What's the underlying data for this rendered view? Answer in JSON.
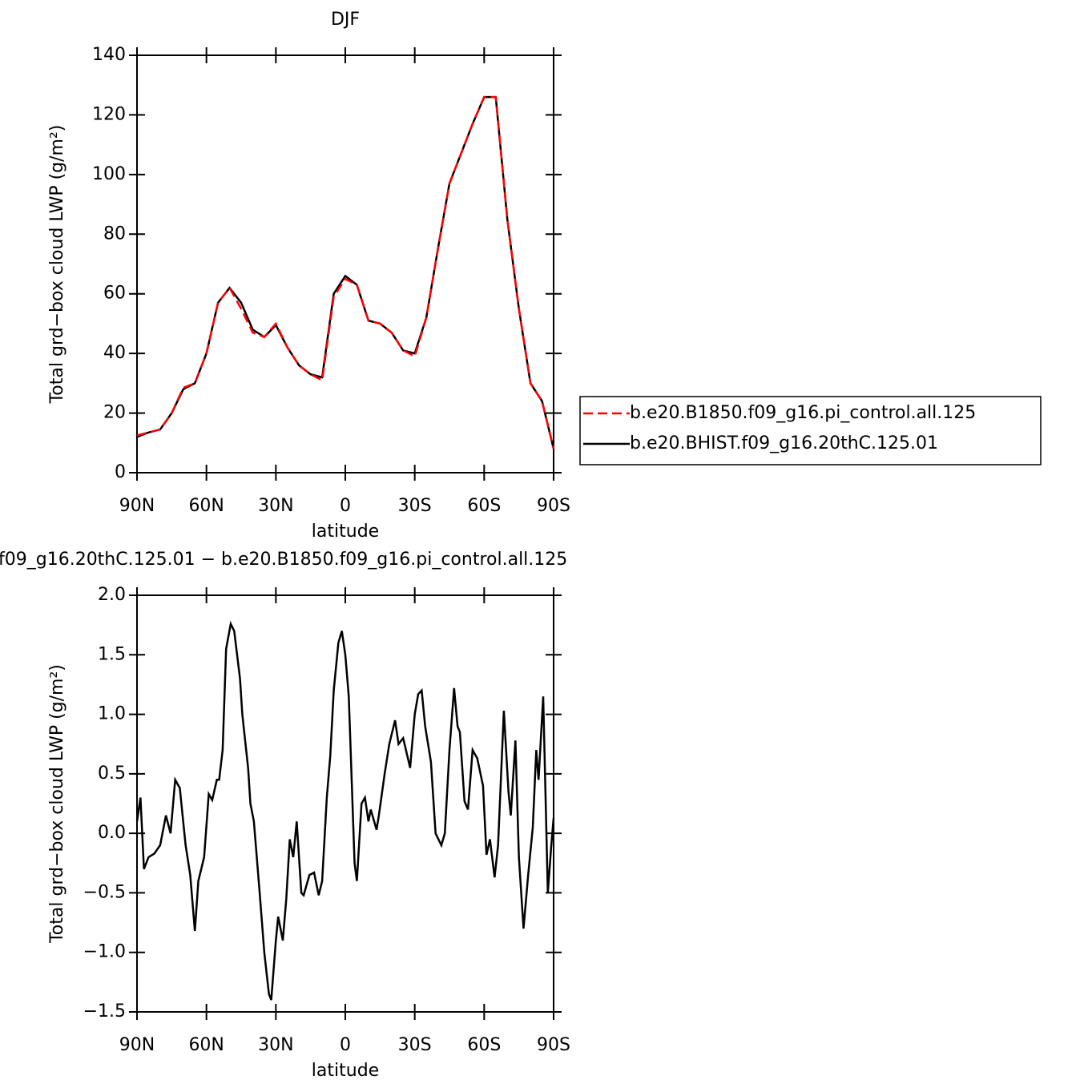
{
  "chart_data": [
    {
      "type": "line",
      "title": "DJF",
      "xlabel": "latitude",
      "ylabel": "Total grd−box cloud LWP (g/m²)",
      "x": [
        90,
        85,
        80,
        75,
        70,
        65,
        60,
        55,
        50,
        45,
        40,
        35,
        30,
        25,
        20,
        15,
        10,
        5,
        0,
        -5,
        -10,
        -15,
        -20,
        -25,
        -30,
        -35,
        -40,
        -45,
        -50,
        -55,
        -60,
        -65,
        -70,
        -75,
        -80,
        -85,
        -90
      ],
      "series": [
        {
          "name": "b.e20.B1850.f09_g16.pi_control.all.125",
          "color": "#ff0000",
          "line_style": "dashed",
          "values": [
            12.5,
            13.5,
            14.5,
            20,
            28.5,
            30,
            40,
            57,
            62,
            55,
            47,
            45.5,
            50,
            42,
            36,
            33,
            31,
            59,
            65,
            63,
            51,
            50,
            47,
            41,
            39,
            52,
            75,
            97,
            107,
            117,
            126,
            126,
            85,
            55,
            30,
            24,
            8
          ]
        },
        {
          "name": "b.e20.BHIST.f09_g16.20thC.125.01",
          "color": "#000000",
          "line_style": "solid",
          "values": [
            12,
            13.5,
            14.5,
            20,
            28,
            30,
            40,
            57,
            62,
            57,
            48,
            45.5,
            49.5,
            42,
            36,
            33,
            32,
            60,
            66,
            63,
            51,
            50,
            47,
            41,
            40,
            52,
            75,
            97,
            107,
            117,
            126,
            126,
            85,
            55,
            30,
            24,
            8
          ]
        }
      ],
      "xlim": [
        90,
        -90
      ],
      "xticks": [
        {
          "value": 90,
          "label": "90N"
        },
        {
          "value": 60,
          "label": "60N"
        },
        {
          "value": 30,
          "label": "30N"
        },
        0,
        {
          "value": -30,
          "label": "30S"
        },
        {
          "value": -60,
          "label": "60S"
        },
        {
          "value": -90,
          "label": "90S"
        }
      ],
      "ylim": [
        0,
        140
      ],
      "yticks": [
        0,
        20,
        40,
        60,
        80,
        100,
        120,
        140
      ],
      "legend": "right"
    },
    {
      "type": "line",
      "title": "f09_g16.20thC.125.01  −  b.e20.B1850.f09_g16.pi_control.all.125",
      "xlabel": "latitude",
      "ylabel": "Total grd−box cloud LWP (g/m²)",
      "x": [
        90,
        88.5,
        87,
        85,
        82.5,
        80,
        77.5,
        75.5,
        73.5,
        71.5,
        69,
        67,
        65,
        63.5,
        61,
        59,
        57.5,
        55.5,
        54.5,
        53,
        51.5,
        49.5,
        48,
        45.5,
        44.5,
        42,
        41,
        39.5,
        37,
        35,
        33,
        32,
        30,
        29,
        27,
        25.5,
        24,
        22.5,
        21,
        19,
        18,
        15.5,
        13.5,
        11.5,
        10,
        8,
        6.5,
        5,
        3,
        1.5,
        0,
        -1.5,
        -4,
        -5,
        -7,
        -8.5,
        -10,
        -11,
        -13.5,
        -14.5,
        -17,
        -19,
        -21.5,
        -23,
        -25,
        -28,
        -30,
        -31.5,
        -33,
        -34.5,
        -37,
        -39,
        -41.5,
        -43,
        -45,
        -47,
        -48.5,
        -49.5,
        -51.5,
        -53,
        -55,
        -57,
        -59.5,
        -61,
        -62.5,
        -64.5,
        -66,
        -68.5,
        -70.5,
        -71.5,
        -73.5,
        -75,
        -77,
        -79,
        -81,
        -82.5,
        -83.5,
        -85.5,
        -87.5,
        -89,
        -90
      ],
      "values": [
        0.1,
        0.3,
        -0.3,
        -0.2,
        -0.17,
        -0.1,
        0.15,
        0.0,
        0.45,
        0.38,
        -0.1,
        -0.35,
        -0.82,
        -0.4,
        -0.2,
        0.33,
        0.28,
        0.45,
        0.45,
        0.7,
        1.55,
        1.76,
        1.7,
        1.3,
        1.0,
        0.55,
        0.25,
        0.1,
        -0.5,
        -1.0,
        -1.35,
        -1.4,
        -0.9,
        -0.7,
        -0.9,
        -0.55,
        -0.05,
        -0.2,
        0.1,
        -0.5,
        -0.52,
        -0.35,
        -0.33,
        -0.52,
        -0.4,
        0.3,
        0.65,
        1.2,
        1.6,
        1.7,
        1.5,
        1.15,
        -0.25,
        -0.4,
        0.25,
        0.3,
        0.1,
        0.2,
        0.03,
        0.15,
        0.5,
        0.75,
        0.95,
        0.75,
        0.8,
        0.55,
        1.0,
        1.17,
        1.2,
        0.9,
        0.6,
        0.0,
        -0.1,
        0.0,
        0.7,
        1.22,
        0.9,
        0.85,
        0.27,
        0.2,
        0.7,
        0.63,
        0.4,
        -0.18,
        -0.05,
        -0.37,
        -0.1,
        1.03,
        0.35,
        0.15,
        0.78,
        -0.2,
        -0.8,
        -0.35,
        0.05,
        0.7,
        0.45,
        1.15,
        -0.5,
        -0.1,
        0.13
      ],
      "color": "#000000",
      "xlim": [
        90,
        -90
      ],
      "xticks": [
        {
          "value": 90,
          "label": "90N"
        },
        {
          "value": 60,
          "label": "60N"
        },
        {
          "value": 30,
          "label": "30N"
        },
        0,
        {
          "value": -30,
          "label": "30S"
        },
        {
          "value": -60,
          "label": "60S"
        },
        {
          "value": -90,
          "label": "90S"
        }
      ],
      "ylim": [
        -1.5,
        2
      ],
      "yticks": [
        {
          "value": -1.5,
          "label": "−1.5"
        },
        {
          "value": -1,
          "label": "−1.0"
        },
        {
          "value": -0.5,
          "label": "−0.5"
        },
        {
          "value": 0,
          "label": "0.0"
        },
        {
          "value": 0.5,
          "label": "0.5"
        },
        {
          "value": 1,
          "label": "1.0"
        },
        {
          "value": 1.5,
          "label": "1.5"
        },
        {
          "value": 2,
          "label": "2.0"
        }
      ]
    }
  ]
}
